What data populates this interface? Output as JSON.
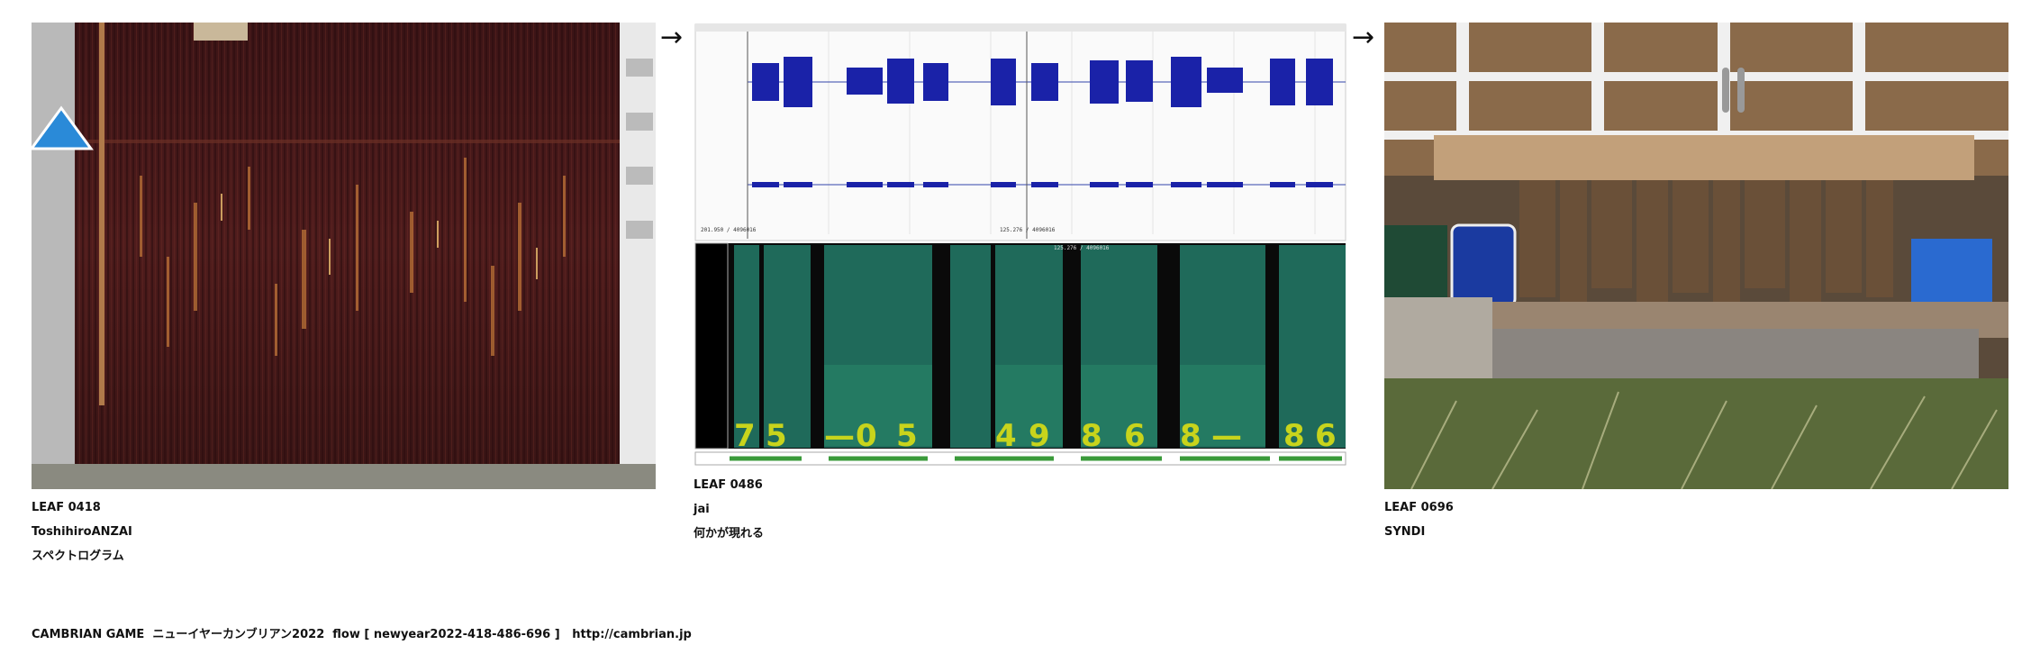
{
  "leaves": [
    {
      "id": "LEAF 0418",
      "author": "ToshihiroANZAI",
      "title": "スペクトログラム"
    },
    {
      "id": "LEAF 0486",
      "author": "jai",
      "title": "何かが現れる"
    },
    {
      "id": "LEAF 0696",
      "author": "SYNDI",
      "title": ""
    }
  ],
  "arrows": [
    "→",
    "→"
  ],
  "spectro": {
    "wave_top_left": "201.950 / 4096016",
    "wave_top_mid": "125.276 / 4096016",
    "spec_mid": "125.276 / 4096016",
    "digits": [
      "7",
      "5",
      "—",
      "0",
      "5",
      "4",
      "9",
      "8",
      "6",
      "8",
      "—",
      "8",
      "6"
    ]
  },
  "footer": "CAMBRIAN GAME  ニューイヤーカンブリアン2022  flow [ newyear2022-418-486-696 ]   http://cambrian.jp",
  "colors": {
    "rust": "#4a1a1c",
    "wave": "#1420a0",
    "spec": "#1f6a5a",
    "digit": "#c8d41c"
  }
}
